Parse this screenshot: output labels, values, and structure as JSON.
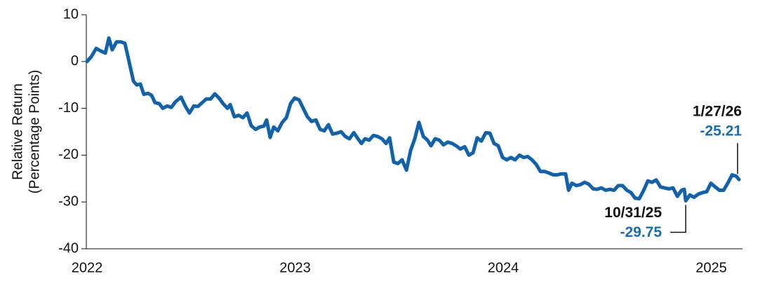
{
  "chart_data": {
    "type": "line",
    "y_label": [
      "Relative Return",
      "(Percentage Points)"
    ],
    "xlim": [
      2022,
      2025.15
    ],
    "xticks": [
      2022,
      2023,
      2024,
      2025
    ],
    "ylim": [
      -40,
      10
    ],
    "yticks": [
      -40,
      -30,
      -20,
      -10,
      0,
      10
    ],
    "grid": false,
    "series": [
      {
        "name": "Relative Return",
        "color": "#0f62ab",
        "x": [
          2022.0,
          2022.02,
          2022.044,
          2022.064,
          2022.088,
          2022.105,
          2022.121,
          2022.142,
          2022.162,
          2022.182,
          2022.202,
          2022.223,
          2022.239,
          2022.256,
          2022.273,
          2022.293,
          2022.31,
          2022.327,
          2022.347,
          2022.364,
          2022.385,
          2022.405,
          2022.425,
          2022.452,
          2022.472,
          2022.492,
          2022.513,
          2022.533,
          2022.553,
          2022.573,
          2022.594,
          2022.614,
          2022.634,
          2022.654,
          2022.675,
          2022.688,
          2022.708,
          2022.729,
          2022.749,
          2022.769,
          2022.789,
          2022.81,
          2022.83,
          2022.85,
          2022.863,
          2022.88,
          2022.897,
          2022.917,
          2022.938,
          2022.958,
          2022.978,
          2022.998,
          2023.019,
          2023.039,
          2023.059,
          2023.079,
          2023.1,
          2023.12,
          2023.14,
          2023.16,
          2023.18,
          2023.201,
          2023.221,
          2023.241,
          2023.261,
          2023.282,
          2023.302,
          2023.319,
          2023.336,
          2023.356,
          2023.376,
          2023.396,
          2023.417,
          2023.437,
          2023.454,
          2023.474,
          2023.494,
          2023.514,
          2023.535,
          2023.555,
          2023.575,
          2023.595,
          2023.616,
          2023.636,
          2023.653,
          2023.673,
          2023.693,
          2023.713,
          2023.734,
          2023.754,
          2023.774,
          2023.794,
          2023.815,
          2023.835,
          2023.855,
          2023.875,
          2023.895,
          2023.916,
          2023.936,
          2023.956,
          2023.976,
          2023.997,
          2024.017,
          2024.037,
          2024.057,
          2024.078,
          2024.098,
          2024.118,
          2024.138,
          2024.159,
          2024.179,
          2024.199,
          2024.219,
          2024.24,
          2024.26,
          2024.28,
          2024.3,
          2024.314,
          2024.33,
          2024.351,
          2024.371,
          2024.391,
          2024.411,
          2024.432,
          2024.452,
          2024.472,
          2024.492,
          2024.513,
          2024.533,
          2024.553,
          2024.573,
          2024.594,
          2024.614,
          2024.634,
          2024.654,
          2024.675,
          2024.695,
          2024.715,
          2024.735,
          2024.756,
          2024.776,
          2024.796,
          2024.816,
          2024.837,
          2024.857,
          2024.87,
          2024.877,
          2024.897,
          2024.917,
          2024.938,
          2024.958,
          2024.978,
          2024.998,
          2025.019,
          2025.039,
          2025.059,
          2025.079,
          2025.1,
          2025.12,
          2025.133
        ],
        "values": [
          0,
          1,
          2.8,
          2.3,
          1.8,
          5,
          2.5,
          4.2,
          4.2,
          3.9,
          0,
          -4.2,
          -5,
          -4.8,
          -7,
          -6.8,
          -7.2,
          -8.8,
          -9,
          -10,
          -9.5,
          -9.8,
          -8.6,
          -7.6,
          -9.5,
          -11,
          -9.5,
          -9.6,
          -8.8,
          -8,
          -8,
          -6.9,
          -7.8,
          -9,
          -10,
          -9.2,
          -11.8,
          -11.5,
          -12,
          -11,
          -13.7,
          -14.5,
          -14,
          -13.8,
          -12.5,
          -16.2,
          -14,
          -14.8,
          -13,
          -12,
          -9,
          -7.8,
          -8.2,
          -10,
          -11.8,
          -12.8,
          -12.5,
          -14.5,
          -14.8,
          -13.5,
          -15.5,
          -15.3,
          -15,
          -16,
          -16.5,
          -15.2,
          -16.5,
          -17.5,
          -16.5,
          -16.8,
          -15.8,
          -16,
          -16.5,
          -17.5,
          -16.3,
          -21.5,
          -21.8,
          -21,
          -23.2,
          -19,
          -16.5,
          -13,
          -16,
          -16.8,
          -18,
          -16.5,
          -16.8,
          -17.8,
          -17.2,
          -17.5,
          -18,
          -18.7,
          -18.2,
          -20,
          -19.5,
          -16.3,
          -17,
          -15.2,
          -15.3,
          -17.5,
          -18,
          -20.5,
          -21,
          -20.5,
          -21,
          -20,
          -20.5,
          -20.3,
          -21,
          -22,
          -23.5,
          -23.5,
          -23.8,
          -24.2,
          -24.2,
          -24,
          -24,
          -27.5,
          -26,
          -26.5,
          -26.3,
          -25.8,
          -26.2,
          -27.2,
          -27.3,
          -27,
          -27.5,
          -27.3,
          -27.5,
          -26.5,
          -26.5,
          -27.5,
          -28,
          -29.2,
          -29.3,
          -27.5,
          -25.5,
          -25.8,
          -25.3,
          -26.8,
          -27,
          -27.2,
          -27,
          -28.8,
          -27.5,
          -27.3,
          -29.75,
          -28.5,
          -29,
          -28.3,
          -28,
          -27.8,
          -26,
          -26.8,
          -27.5,
          -27.5,
          -26,
          -24.2,
          -24.5,
          -25.21
        ]
      }
    ],
    "annotations": [
      {
        "date": "10/31/25",
        "x": 2024.877,
        "value": -29.75,
        "side": "below-left"
      },
      {
        "date": "1/27/26",
        "x": 2025.133,
        "value": -25.21,
        "side": "above"
      }
    ]
  }
}
